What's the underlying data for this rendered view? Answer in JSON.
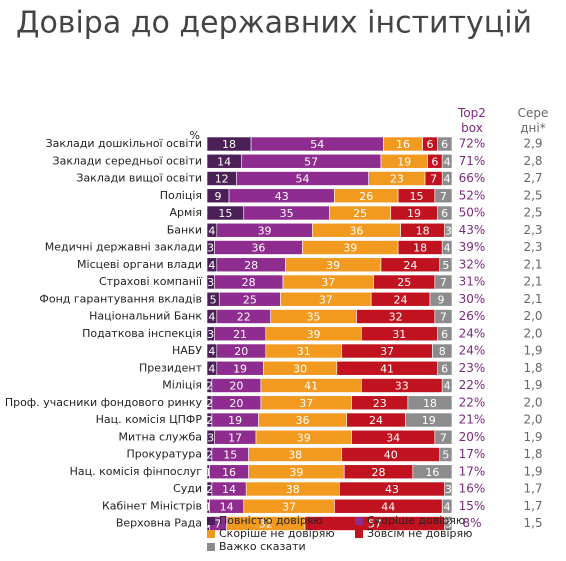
{
  "chart_data": {
    "type": "stacked-bar",
    "title": "Довіра до державних інституцій",
    "unit_label": "%",
    "categories": [
      "Заклади дошкільної освіти",
      "Заклади середньої освіти",
      "Заклади вищої освіти",
      "Поліція",
      "Армія",
      "Банки",
      "Медичні державні заклади",
      "Місцеві органи влади",
      "Страхові компанії",
      "Фонд гарантування вкладів",
      "Національний Банк",
      "Податкова інспекція",
      "НАБУ",
      "Президент",
      "Міліція",
      "Проф. учасники фондового ринку",
      "Нац. комісія ЦПФР",
      "Митна служба",
      "Прокуратура",
      "Нац. комісія фінпослуг",
      "Суди",
      "Кабінет Міністрів",
      "Верховна Рада"
    ],
    "xlim": [
      0,
      100
    ],
    "series": [
      {
        "name": "Повністю довіряю",
        "color": "#4a2056",
        "values": [
          18,
          14,
          12,
          9,
          15,
          4,
          3,
          4,
          3,
          5,
          4,
          3,
          4,
          4,
          2,
          2,
          2,
          3,
          2,
          1,
          2,
          1,
          1
        ]
      },
      {
        "name": "Скоріше довіряю",
        "color": "#8e2c8f",
        "values": [
          54,
          57,
          54,
          43,
          35,
          39,
          36,
          28,
          28,
          25,
          22,
          21,
          20,
          19,
          20,
          20,
          19,
          17,
          15,
          16,
          14,
          14,
          7
        ]
      },
      {
        "name": "Скоріше не довіряю",
        "color": "#f29a1f",
        "values": [
          16,
          19,
          23,
          26,
          25,
          36,
          39,
          39,
          37,
          37,
          35,
          39,
          31,
          30,
          41,
          37,
          36,
          39,
          38,
          39,
          38,
          37,
          32
        ]
      },
      {
        "name": "Зовсім не довіряю",
        "color": "#c1131f",
        "values": [
          6,
          6,
          7,
          15,
          19,
          18,
          18,
          24,
          25,
          24,
          32,
          31,
          37,
          41,
          33,
          23,
          24,
          34,
          40,
          28,
          43,
          44,
          57
        ]
      },
      {
        "name": "Важко сказати",
        "color": "#8c8c8c",
        "values": [
          6,
          4,
          4,
          7,
          6,
          3,
          4,
          5,
          7,
          9,
          7,
          6,
          8,
          6,
          4,
          18,
          19,
          7,
          5,
          16,
          3,
          4,
          3
        ]
      }
    ],
    "columns": [
      {
        "title": "Top2 box",
        "color": "#7b2a7e",
        "values": [
          72,
          71,
          66,
          52,
          50,
          43,
          39,
          32,
          31,
          30,
          26,
          24,
          24,
          23,
          22,
          22,
          21,
          20,
          17,
          17,
          16,
          15,
          8
        ],
        "value_labels": [
          "72%",
          "71%",
          "66%",
          "52%",
          "50%",
          "43%",
          "39%",
          "32%",
          "31%",
          "30%",
          "26%",
          "24%",
          "24%",
          "23%",
          "22%",
          "22%",
          "21%",
          "20%",
          "17%",
          "17%",
          "16%",
          "15%",
          "8%"
        ]
      },
      {
        "title": "Сере дні*",
        "color": "#666666",
        "values": [
          2.9,
          2.8,
          2.7,
          2.5,
          2.5,
          2.3,
          2.3,
          2.1,
          2.1,
          2.1,
          2.0,
          2.0,
          1.9,
          1.8,
          1.9,
          2.0,
          2.0,
          1.9,
          1.8,
          1.9,
          1.7,
          1.7,
          1.5
        ],
        "value_labels": [
          "2,9",
          "2,8",
          "2,7",
          "2,5",
          "2,5",
          "2,3",
          "2,3",
          "2,1",
          "2,1",
          "2,1",
          "2,0",
          "2,0",
          "1,9",
          "1,8",
          "1,9",
          "2,0",
          "2,0",
          "1,9",
          "1,8",
          "1,9",
          "1,7",
          "1,7",
          "1,5"
        ]
      }
    ]
  }
}
